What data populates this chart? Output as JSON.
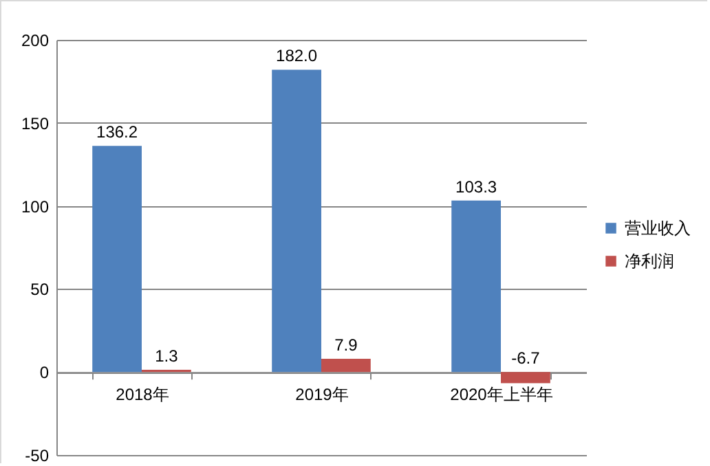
{
  "chart_data": {
    "type": "bar",
    "categories": [
      "2018年",
      "2019年",
      "2020年上半年"
    ],
    "series": [
      {
        "name": "营业收入",
        "color": "#4f81bd",
        "values": [
          136.2,
          182.0,
          103.3
        ],
        "value_labels": [
          "136.2",
          "182.0",
          "103.3"
        ]
      },
      {
        "name": "净利润",
        "color": "#c0504d",
        "values": [
          1.3,
          7.9,
          -6.7
        ],
        "value_labels": [
          "1.3",
          "7.9",
          "-6.7"
        ]
      }
    ],
    "ylim": [
      -50,
      200
    ],
    "yticks": [
      -50,
      0,
      50,
      100,
      150,
      200
    ],
    "grid": "y",
    "legend": "right"
  }
}
